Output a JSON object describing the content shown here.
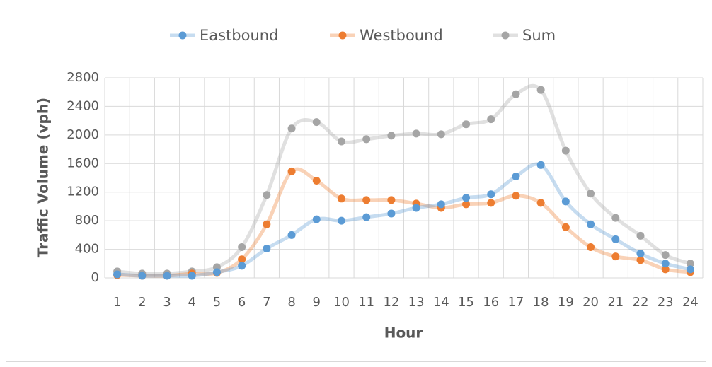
{
  "chart_data": {
    "type": "line",
    "x_label": "Hour",
    "y_label": "Traffic Volume (vph)",
    "categories": [
      1,
      2,
      3,
      4,
      5,
      6,
      7,
      8,
      9,
      10,
      11,
      12,
      13,
      14,
      15,
      16,
      17,
      18,
      19,
      20,
      21,
      22,
      23,
      24
    ],
    "series": [
      {
        "name": "Eastbound",
        "color": "#5b9bd5",
        "values": [
          50,
          30,
          30,
          30,
          80,
          170,
          410,
          600,
          820,
          800,
          850,
          900,
          980,
          1030,
          1120,
          1170,
          1420,
          1580,
          1070,
          750,
          540,
          340,
          200,
          120
        ]
      },
      {
        "name": "Westbound",
        "color": "#ed7d31",
        "values": [
          40,
          30,
          30,
          60,
          70,
          260,
          750,
          1490,
          1360,
          1110,
          1090,
          1090,
          1040,
          980,
          1030,
          1050,
          1150,
          1050,
          710,
          430,
          300,
          250,
          120,
          80
        ]
      },
      {
        "name": "Sum",
        "color": "#a5a5a5",
        "values": [
          90,
          60,
          60,
          90,
          150,
          430,
          1160,
          2090,
          2180,
          1910,
          1940,
          1990,
          2020,
          2010,
          2150,
          2220,
          2570,
          2630,
          1780,
          1180,
          840,
          590,
          320,
          200
        ]
      }
    ],
    "ylim": [
      0,
      2800
    ],
    "yticks": [
      0,
      400,
      800,
      1200,
      1600,
      2000,
      2400,
      2800
    ],
    "grid": true,
    "smooth": true,
    "legend": "top"
  }
}
